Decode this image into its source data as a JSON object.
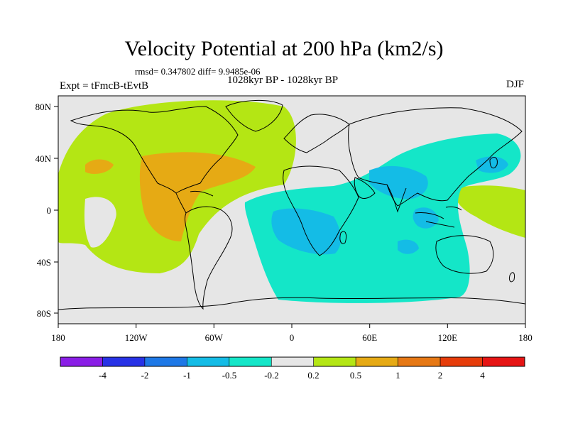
{
  "header": {
    "title": "Velocity Potential at 200 hPa (km2/s)",
    "stats": "rmsd= 0.347802 diff= 9.9485e-06",
    "period": "1028kyr BP - 1028kyr BP",
    "experiment": "Expt = tFmcB-tEvtB",
    "season": "DJF"
  },
  "map": {
    "x_labels": [
      "180",
      "120W",
      "60W",
      "0",
      "60E",
      "120E",
      "180"
    ],
    "y_labels": [
      "80N",
      "40N",
      "0",
      "40S",
      "80S"
    ],
    "background_color": "#e6e6e6",
    "coast_color": "#000000"
  },
  "colorbar": {
    "colors": [
      "#8a1ee6",
      "#2832e6",
      "#1e78e6",
      "#14bce6",
      "#14e6c8",
      "#e6e6e6",
      "#b4e614",
      "#e6aa14",
      "#e67814",
      "#e63c0a",
      "#e61414"
    ],
    "labels": [
      "-4",
      "-2",
      "-1",
      "-0.5",
      "-0.2",
      "0.2",
      "0.5",
      "1",
      "2",
      "4"
    ]
  }
}
